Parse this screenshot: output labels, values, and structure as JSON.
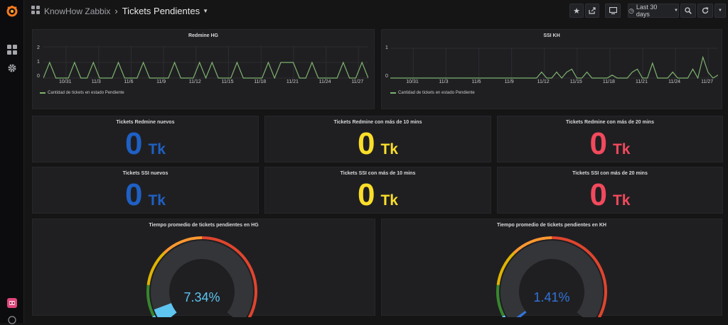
{
  "app": {
    "folder": "KnowHow Zabbix",
    "title": "Tickets Pendientes",
    "time_range": "Last 30 days",
    "icons": [
      "grafana-logo-icon",
      "dashboards-icon",
      "settings-gear-icon",
      "user-avatar-icon",
      "help-icon",
      "star-icon",
      "share-icon",
      "tv-mode-icon",
      "clock-icon",
      "zoom-out-icon",
      "refresh-icon",
      "caret-down-icon"
    ]
  },
  "colors": {
    "blue": "#1f60c4",
    "yellow": "#fade2a",
    "red": "#f2495c",
    "series": "#7eb26d",
    "gauge_value_hg": "#5ec4f0",
    "gauge_value_kh": "#3274d9"
  },
  "graphs": {
    "hg": {
      "title": "Redmine HG",
      "legend": "Cantidad de tickets en estado Pendiente",
      "y_ticks": [
        "2",
        "1",
        "0"
      ]
    },
    "kh": {
      "title": "SSI KH",
      "legend": "Cantidad de tickets en estado Pendiente",
      "y_ticks": [
        "1",
        "0"
      ]
    }
  },
  "chart_data": [
    {
      "type": "line",
      "title": "Redmine HG",
      "x_ticks": [
        "10/31",
        "11/3",
        "11/6",
        "11/9",
        "11/12",
        "11/15",
        "11/18",
        "11/21",
        "11/24",
        "11/27"
      ],
      "ylim": [
        0,
        2
      ],
      "series": [
        {
          "name": "Cantidad de tickets en estado Pendiente",
          "values": [
            0,
            1,
            0,
            0,
            0,
            1,
            0,
            0,
            1,
            0,
            0,
            0,
            1,
            0,
            0,
            0,
            1,
            0,
            0,
            0,
            0,
            1,
            0,
            0,
            0,
            1,
            0,
            1,
            0,
            0,
            0,
            1,
            0,
            0,
            0,
            0,
            1,
            0,
            1,
            1,
            1,
            0,
            0,
            1,
            0,
            0,
            0,
            0,
            1,
            0,
            0,
            1,
            0
          ]
        }
      ]
    },
    {
      "type": "line",
      "title": "SSI KH",
      "x_ticks": [
        "10/31",
        "11/3",
        "11/6",
        "11/9",
        "11/12",
        "11/15",
        "11/18",
        "11/21",
        "11/24",
        "11/27"
      ],
      "ylim": [
        0,
        1
      ],
      "series": [
        {
          "name": "Cantidad de tickets en estado Pendiente",
          "values": [
            0,
            0,
            0,
            0,
            0,
            0,
            0,
            0,
            0,
            0,
            0,
            0,
            0,
            0,
            0,
            0,
            0,
            0,
            0,
            0,
            0,
            0,
            0,
            0,
            0,
            0,
            0,
            0,
            0,
            0,
            0.2,
            0,
            0,
            0.2,
            0,
            0.2,
            0.3,
            0,
            0,
            0.2,
            0,
            0,
            0,
            0,
            0.1,
            0,
            0,
            0,
            0.2,
            0.3,
            0,
            0,
            0.5,
            0,
            0,
            0,
            0.2,
            0,
            0,
            0,
            0.3,
            0,
            0.7,
            0.2,
            0,
            0.1
          ]
        }
      ]
    }
  ],
  "stats": [
    {
      "title": "Tickets Redmine nuevos",
      "value": "0",
      "unit": "Tk",
      "color": "#1f60c4"
    },
    {
      "title": "Tickets Redmine con más de 10 mins",
      "value": "0",
      "unit": "Tk",
      "color": "#fade2a"
    },
    {
      "title": "Tickets Redmine con más de 20 mins",
      "value": "0",
      "unit": "Tk",
      "color": "#f2495c"
    },
    {
      "title": "Tickets SSI nuevos",
      "value": "0",
      "unit": "Tk",
      "color": "#1f60c4"
    },
    {
      "title": "Tickets SSI con más de 10 mins",
      "value": "0",
      "unit": "Tk",
      "color": "#fade2a"
    },
    {
      "title": "Tickets SSI con más de 20 mins",
      "value": "0",
      "unit": "Tk",
      "color": "#f2495c"
    }
  ],
  "gauges": [
    {
      "title": "Tiempo promedio de tickets pendientes en HG",
      "value": "7.34%",
      "percent": 7.34,
      "color": "#5ec4f0"
    },
    {
      "title": "Tiempo promedio de tickets pendientes en KH",
      "value": "1.41%",
      "percent": 1.41,
      "color": "#3274d9"
    }
  ]
}
